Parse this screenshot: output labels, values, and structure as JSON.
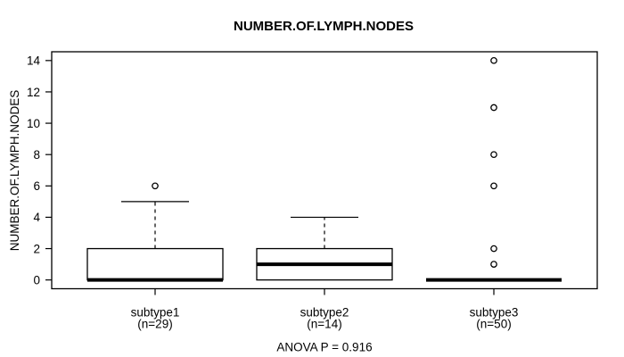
{
  "chart_data": {
    "type": "boxplot",
    "title": "NUMBER.OF.LYMPH.NODES",
    "ylabel": "NUMBER.OF.LYMPH.NODES",
    "xlabel": "",
    "annotation": "ANOVA P = 0.916",
    "ylim": [
      0,
      14
    ],
    "yticks": [
      0,
      2,
      4,
      6,
      8,
      10,
      12,
      14
    ],
    "grid": false,
    "legend": "none",
    "groups": [
      {
        "label": "subtype1",
        "count_label": "(n=29)",
        "n": 29,
        "q1": 0,
        "median": 0,
        "q3": 2,
        "whisker_low": 0,
        "whisker_high": 5,
        "outliers": [
          6
        ]
      },
      {
        "label": "subtype2",
        "count_label": "(n=14)",
        "n": 14,
        "q1": 0,
        "median": 1,
        "q3": 2,
        "whisker_low": 0,
        "whisker_high": 4,
        "outliers": []
      },
      {
        "label": "subtype3",
        "count_label": "(n=50)",
        "n": 50,
        "q1": 0,
        "median": 0,
        "q3": 0,
        "whisker_low": 0,
        "whisker_high": 0,
        "outliers": [
          1,
          2,
          6,
          8,
          11,
          14
        ]
      }
    ],
    "colors": {
      "stroke": "#000000",
      "box_fill": "#ffffff",
      "background": "#ffffff"
    }
  }
}
